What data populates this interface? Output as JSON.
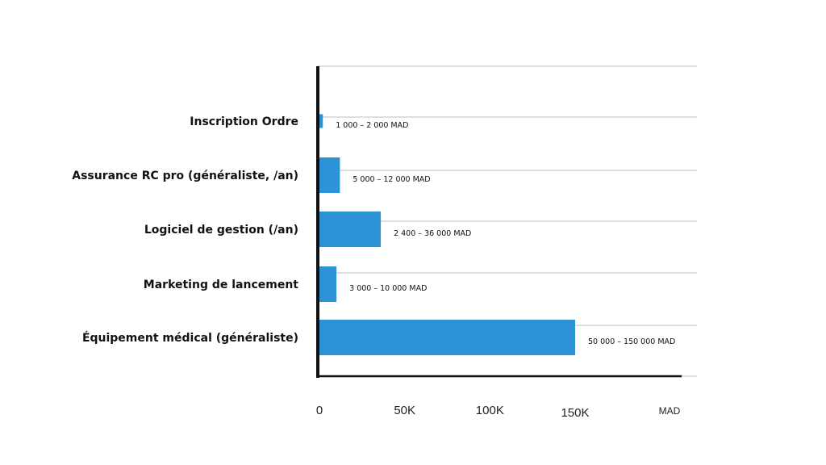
{
  "chart_data": {
    "type": "bar",
    "orientation": "horizontal",
    "categories": [
      "Inscription Ordre",
      "Assurance RC pro (généraliste, /an)",
      "Logiciel de gestion (/an)",
      "Marketing de lancement",
      "Équipement médical (généraliste)"
    ],
    "values": [
      2000,
      12000,
      36000,
      10000,
      150000
    ],
    "data_labels": [
      "1 000 – 2 000 MAD",
      "5 000 – 12 000 MAD",
      "2 400 – 36 000  MAD",
      "3 000 – 10 000 MAD",
      "50 000 – 150 000 MAD"
    ],
    "x_ticks": [
      {
        "value": 0,
        "label": "0"
      },
      {
        "value": 50000,
        "label": "50K"
      },
      {
        "value": 100000,
        "label": "100K"
      },
      {
        "value": 150000,
        "label": "150K"
      }
    ],
    "xlim": [
      0,
      150000
    ],
    "unit_label": "MAD",
    "title": "",
    "xlabel": "",
    "ylabel": "",
    "grid": true,
    "legend": false,
    "colors": {
      "bar": "#2e92d6",
      "axis": "#111111",
      "grid": "#cccccc",
      "text": "#111111"
    }
  }
}
